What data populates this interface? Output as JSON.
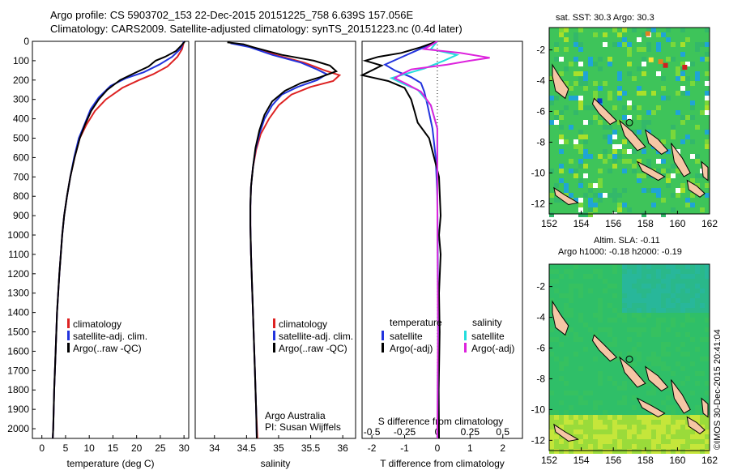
{
  "header": {
    "line1": "Argo profile: CS 5903702_153 22-Dec-2015 20151225_758 6.639S 157.056E",
    "line2": "Climatology: CARS2009. Satellite-adjusted climatology: synTS_20151223.nc (0.4d later)"
  },
  "stamp": "©IMOS 30-Dec-2015 20:41:04",
  "maps": {
    "sst_title": "sat. SST: 30.3 Argo: 30.3",
    "sla_title1": "Altim. SLA: -0.11",
    "sla_title2": "Argo h1000: -0.18 h2000: -0.19",
    "lon_ticks": [
      "152",
      "154",
      "156",
      "158",
      "160",
      "162"
    ],
    "lat_ticks_sst": [
      "-2",
      "-4",
      "-6",
      "-8",
      "-10",
      "-12"
    ],
    "lat_ticks_sla": [
      "-2",
      "-4",
      "-6",
      "-8",
      "-10",
      "-12"
    ],
    "colors": {
      "sst_base": "#3ec45a",
      "sla_base": "#2fbf68",
      "land": "#f5c6a5"
    }
  },
  "chart_data": [
    {
      "type": "line",
      "xlabel": "temperature (deg C)",
      "ylabel": "",
      "xlim": [
        -2,
        31
      ],
      "ylim": [
        2050,
        0
      ],
      "xticks": [
        0,
        5,
        10,
        15,
        20,
        25,
        30
      ],
      "yticks": [
        0,
        100,
        200,
        300,
        400,
        500,
        600,
        700,
        800,
        900,
        1000,
        1100,
        1200,
        1300,
        1400,
        1500,
        1600,
        1700,
        1800,
        1900,
        2000
      ],
      "legend": [
        "climatology",
        "satellite-adj. clim.",
        "Argo(..raw -QC)"
      ],
      "series": [
        {
          "name": "climatology",
          "color": "#dd2222",
          "values": [
            [
              30,
              0
            ],
            [
              29.6,
              40
            ],
            [
              28.6,
              80
            ],
            [
              26.5,
              130
            ],
            [
              23.5,
              170
            ],
            [
              20.5,
              200
            ],
            [
              17,
              240
            ],
            [
              13.5,
              300
            ],
            [
              11.2,
              360
            ],
            [
              9.4,
              430
            ],
            [
              8,
              500
            ],
            [
              6.9,
              600
            ],
            [
              6,
              700
            ],
            [
              5.3,
              800
            ],
            [
              4.7,
              900
            ],
            [
              4.3,
              1000
            ],
            [
              3.7,
              1200
            ],
            [
              3.2,
              1400
            ],
            [
              2.9,
              1600
            ],
            [
              2.6,
              1800
            ],
            [
              2.4,
              2000
            ],
            [
              2.3,
              2050
            ]
          ]
        },
        {
          "name": "satellite-adj. clim.",
          "color": "#2233dd",
          "values": [
            [
              30,
              0
            ],
            [
              29.2,
              40
            ],
            [
              27.5,
              80
            ],
            [
              24.8,
              120
            ],
            [
              21.5,
              160
            ],
            [
              17.8,
              190
            ],
            [
              14.5,
              230
            ],
            [
              12,
              290
            ],
            [
              10.3,
              350
            ],
            [
              9,
              430
            ],
            [
              7.8,
              500
            ],
            [
              6.8,
              600
            ],
            [
              6,
              700
            ],
            [
              5.3,
              800
            ],
            [
              4.7,
              900
            ],
            [
              4.3,
              1000
            ],
            [
              3.7,
              1200
            ],
            [
              3.2,
              1400
            ],
            [
              2.9,
              1600
            ],
            [
              2.6,
              1800
            ],
            [
              2.4,
              2000
            ],
            [
              2.3,
              2050
            ]
          ]
        },
        {
          "name": "Argo(..raw -QC)",
          "color": "#000000",
          "values": [
            [
              30.2,
              0
            ],
            [
              29.5,
              20
            ],
            [
              28.3,
              50
            ],
            [
              26,
              80
            ],
            [
              24,
              100
            ],
            [
              22.5,
              130
            ],
            [
              19.5,
              165
            ],
            [
              16.5,
              200
            ],
            [
              13.8,
              250
            ],
            [
              12,
              300
            ],
            [
              10.4,
              360
            ],
            [
              9.1,
              430
            ],
            [
              8,
              500
            ],
            [
              6.9,
              600
            ],
            [
              6,
              700
            ],
            [
              5.3,
              800
            ],
            [
              4.7,
              900
            ],
            [
              4.3,
              1000
            ],
            [
              3.7,
              1200
            ],
            [
              3.2,
              1400
            ],
            [
              2.9,
              1600
            ],
            [
              2.6,
              1800
            ],
            [
              2.4,
              2000
            ],
            [
              2.3,
              2050
            ]
          ]
        }
      ]
    },
    {
      "type": "line",
      "xlabel": "salinity",
      "ylabel": "",
      "xlim": [
        33.7,
        36.2
      ],
      "ylim": [
        2050,
        0
      ],
      "xticks": [
        34,
        34.5,
        35,
        35.5,
        36
      ],
      "yticks": [],
      "legend": [
        "climatology",
        "satellite-adj. clim.",
        "Argo(..raw -QC)"
      ],
      "annotation": [
        "Argo Australia",
        "PI: Susan Wijffels"
      ],
      "series": [
        {
          "name": "climatology",
          "color": "#dd2222",
          "values": [
            [
              34.3,
              10
            ],
            [
              34.6,
              30
            ],
            [
              34.95,
              70
            ],
            [
              35.4,
              110
            ],
            [
              35.72,
              150
            ],
            [
              35.95,
              175
            ],
            [
              35.85,
              205
            ],
            [
              35.5,
              235
            ],
            [
              35.2,
              275
            ],
            [
              35,
              330
            ],
            [
              34.85,
              400
            ],
            [
              34.72,
              480
            ],
            [
              34.65,
              560
            ],
            [
              34.6,
              650
            ],
            [
              34.57,
              750
            ],
            [
              34.56,
              850
            ],
            [
              34.56,
              950
            ],
            [
              34.57,
              1100
            ],
            [
              34.59,
              1300
            ],
            [
              34.61,
              1500
            ],
            [
              34.63,
              1700
            ],
            [
              34.65,
              1900
            ],
            [
              34.67,
              2050
            ]
          ]
        },
        {
          "name": "satellite-adj. clim.",
          "color": "#2233dd",
          "values": [
            [
              34.25,
              10
            ],
            [
              34.55,
              30
            ],
            [
              34.9,
              70
            ],
            [
              35.35,
              110
            ],
            [
              35.6,
              145
            ],
            [
              35.75,
              170
            ],
            [
              35.6,
              200
            ],
            [
              35.3,
              235
            ],
            [
              35.05,
              275
            ],
            [
              34.9,
              330
            ],
            [
              34.78,
              400
            ],
            [
              34.7,
              480
            ],
            [
              34.64,
              560
            ],
            [
              34.6,
              650
            ],
            [
              34.57,
              750
            ],
            [
              34.56,
              850
            ],
            [
              34.56,
              950
            ],
            [
              34.57,
              1100
            ],
            [
              34.59,
              1300
            ],
            [
              34.61,
              1500
            ],
            [
              34.63,
              1700
            ],
            [
              34.65,
              1900
            ],
            [
              34.66,
              2050
            ]
          ]
        },
        {
          "name": "Argo(..raw -QC)",
          "color": "#000000",
          "values": [
            [
              34.2,
              5
            ],
            [
              34.45,
              15
            ],
            [
              34.6,
              30
            ],
            [
              35.05,
              70
            ],
            [
              35.55,
              100
            ],
            [
              35.8,
              125
            ],
            [
              35.9,
              155
            ],
            [
              35.65,
              185
            ],
            [
              35.35,
              215
            ],
            [
              35.1,
              255
            ],
            [
              34.9,
              310
            ],
            [
              34.78,
              380
            ],
            [
              34.7,
              460
            ],
            [
              34.64,
              550
            ],
            [
              34.6,
              650
            ],
            [
              34.57,
              750
            ],
            [
              34.56,
              850
            ],
            [
              34.56,
              950
            ],
            [
              34.57,
              1100
            ],
            [
              34.59,
              1300
            ],
            [
              34.61,
              1500
            ],
            [
              34.63,
              1700
            ],
            [
              34.65,
              1900
            ],
            [
              34.66,
              2050
            ]
          ]
        }
      ]
    },
    {
      "type": "line",
      "xlabel": "T difference from climatology",
      "xlabel_top": "S difference from climatology",
      "ylabel": "",
      "xlim": [
        -2.3,
        2.6
      ],
      "ylim": [
        2050,
        0
      ],
      "xticks": [
        -2,
        -1,
        0,
        1,
        2
      ],
      "xticks_top": [
        -0.5,
        -0.25,
        0,
        0.25,
        0.5
      ],
      "yticks": [],
      "legend_t_title": "temperature",
      "legend_s_title": "salinity",
      "legend_t": [
        "satellite",
        "Argo(-adj)"
      ],
      "legend_s": [
        "satellite",
        "Argo(-adj)"
      ],
      "series": [
        {
          "name": "satellite",
          "color": "#2233dd",
          "values": [
            [
              0,
              0
            ],
            [
              -0.4,
              30
            ],
            [
              -0.8,
              60
            ],
            [
              -1.2,
              90
            ],
            [
              -1.6,
              120
            ],
            [
              -1.3,
              150
            ],
            [
              -0.8,
              185
            ],
            [
              -0.5,
              215
            ],
            [
              -0.4,
              260
            ],
            [
              -0.3,
              330
            ],
            [
              -0.15,
              450
            ],
            [
              -0.05,
              600
            ],
            [
              0,
              800
            ],
            [
              0.02,
              1200
            ],
            [
              0.03,
              1600
            ],
            [
              0.02,
              2050
            ]
          ]
        },
        {
          "name": "Argo(-adj)",
          "color": "#000000",
          "values": [
            [
              0,
              0
            ],
            [
              -0.5,
              30
            ],
            [
              -1.1,
              60
            ],
            [
              -1.8,
              80
            ],
            [
              -2.2,
              100
            ],
            [
              -1.7,
              125
            ],
            [
              -2.3,
              175
            ],
            [
              -1.5,
              205
            ],
            [
              -1.0,
              240
            ],
            [
              -0.8,
              300
            ],
            [
              -0.7,
              360
            ],
            [
              -0.6,
              420
            ],
            [
              -0.25,
              500
            ],
            [
              -0.1,
              600
            ],
            [
              0.05,
              700
            ],
            [
              0.1,
              900
            ],
            [
              0.05,
              1000
            ],
            [
              0.1,
              1100
            ],
            [
              0.05,
              1300
            ],
            [
              0.07,
              1500
            ],
            [
              0.04,
              1800
            ],
            [
              0.05,
              2050
            ]
          ]
        },
        {
          "name": "satellite",
          "color": "#22dddd",
          "values": [
            [
              0,
              0
            ],
            [
              -0.2,
              40
            ],
            [
              0.6,
              70
            ],
            [
              0.2,
              100
            ],
            [
              -0.4,
              140
            ],
            [
              -1.0,
              170
            ],
            [
              -1.4,
              190
            ],
            [
              -1.1,
              215
            ],
            [
              -0.6,
              250
            ],
            [
              -0.2,
              330
            ],
            [
              0,
              450
            ],
            [
              0,
              800
            ],
            [
              0.02,
              1500
            ],
            [
              0,
              2050
            ]
          ]
        },
        {
          "name": "Argo(-adj)",
          "color": "#dd22dd",
          "values": [
            [
              0,
              0
            ],
            [
              -0.4,
              40
            ],
            [
              0.7,
              60
            ],
            [
              1.6,
              85
            ],
            [
              1.0,
              100
            ],
            [
              0.3,
              120
            ],
            [
              -0.8,
              145
            ],
            [
              -1.1,
              170
            ],
            [
              -1.3,
              190
            ],
            [
              -1.0,
              215
            ],
            [
              -0.5,
              260
            ],
            [
              -0.2,
              330
            ],
            [
              0,
              450
            ],
            [
              0,
              800
            ],
            [
              0.02,
              1500
            ],
            [
              0,
              2050
            ]
          ]
        }
      ]
    }
  ]
}
